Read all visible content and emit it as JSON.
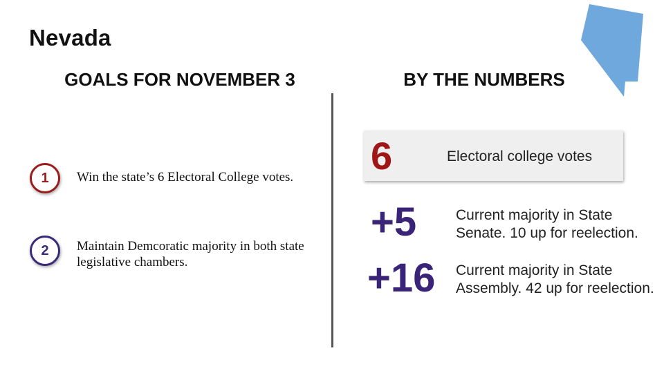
{
  "slide": {
    "title": "Nevada",
    "left_heading": "GOALS FOR NOVEMBER 3",
    "right_heading": "BY THE NUMBERS"
  },
  "goals": [
    {
      "number": "1",
      "text": "Win the state’s 6 Electoral College votes.",
      "color": "#9b1c1c"
    },
    {
      "number": "2",
      "text": "Maintain Demcoratic majority in both state legislative chambers.",
      "color": "#3a2a78"
    }
  ],
  "electoral": {
    "value": "6",
    "label": "Electoral college votes",
    "color": "#a01515"
  },
  "numbers": [
    {
      "value": "+5",
      "line1": "Current majority in State",
      "line2": "Senate. 10 up for reelection.",
      "color": "#3a2478"
    },
    {
      "value": "+16",
      "line1": "Current majority in State",
      "line2": "Assembly. 42 up for reelection.",
      "color": "#3a2478"
    }
  ],
  "colors": {
    "map_fill": "#6fa8dc",
    "divider": "#555555"
  }
}
